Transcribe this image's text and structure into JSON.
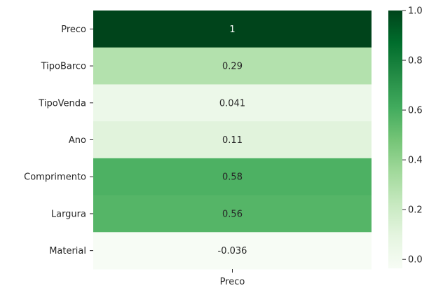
{
  "chart_data": {
    "type": "heatmap",
    "rows": [
      "Preco",
      "TipoBarco",
      "TipoVenda",
      "Ano",
      "Comprimento",
      "Largura",
      "Material"
    ],
    "columns": [
      "Preco"
    ],
    "values": [
      [
        1.0
      ],
      [
        0.29
      ],
      [
        0.041
      ],
      [
        0.11
      ],
      [
        0.58
      ],
      [
        0.56
      ],
      [
        -0.036
      ]
    ],
    "annotations": [
      "1",
      "0.29",
      "0.041",
      "0.11",
      "0.58",
      "0.56",
      "-0.036"
    ],
    "colormap": "Greens",
    "vmin": -0.036,
    "vmax": 1.0,
    "colorbar": {
      "ticks": [
        0.0,
        0.2,
        0.4,
        0.6,
        0.8,
        1.0
      ],
      "tick_labels": [
        "0.0",
        "0.2",
        "0.4",
        "0.6",
        "0.8",
        "1.0"
      ]
    }
  }
}
